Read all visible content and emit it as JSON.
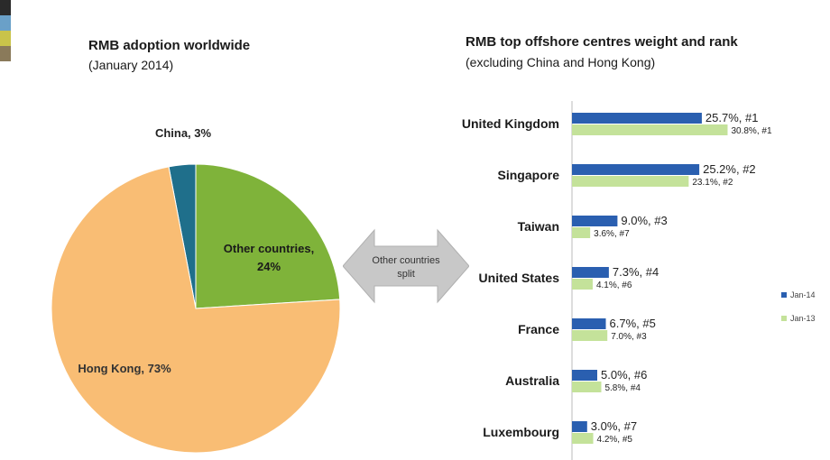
{
  "corner_colors": [
    "#2a2a2a",
    "#6aa0c8",
    "#c9c34a",
    "#8a7a5a"
  ],
  "arrow_label_line1": "Other countries",
  "arrow_label_line2": "split",
  "chart_data": [
    {
      "type": "pie",
      "title": "RMB adoption worldwide",
      "subtitle": "(January 2014)",
      "slices": [
        {
          "label": "China, 3%",
          "value": 3,
          "color": "#1f6f8b"
        },
        {
          "label": "Other countries, 24%",
          "value": 24,
          "color": "#7fb33a"
        },
        {
          "label": "Hong Kong, 73%",
          "value": 73,
          "color": "#f9bd74"
        }
      ]
    },
    {
      "type": "bar",
      "orientation": "horizontal",
      "title": "RMB top offshore centres weight and rank",
      "subtitle": "(excluding China and Hong Kong)",
      "categories": [
        "United Kingdom",
        "Singapore",
        "Taiwan",
        "United States",
        "France",
        "Australia",
        "Luxembourg"
      ],
      "series": [
        {
          "name": "Jan-14",
          "color": "#2a5fb0",
          "values": [
            25.7,
            25.2,
            9.0,
            7.3,
            6.7,
            5.0,
            3.0
          ],
          "labels": [
            "25.7%, #1",
            "25.2%, #2",
            "9.0%, #3",
            "7.3%, #4",
            "6.7%, #5",
            "5.0%, #6",
            "3.0%, #7"
          ]
        },
        {
          "name": "Jan-13",
          "color": "#c4e29a",
          "values": [
            30.8,
            23.1,
            3.6,
            4.1,
            7.0,
            5.8,
            4.2
          ],
          "labels": [
            "30.8%, #1",
            "23.1%, #2",
            "3.6%, #7",
            "4.1%, #6",
            "7.0%, #3",
            "5.8%, #4",
            "4.2%, #5"
          ]
        }
      ]
    }
  ]
}
